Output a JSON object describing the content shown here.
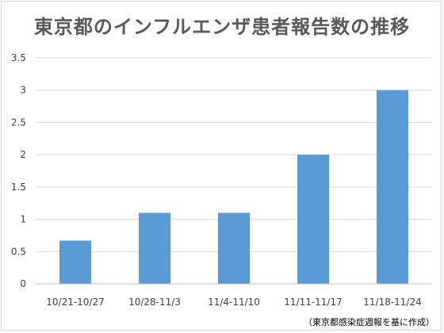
{
  "title": "東京都のインフルエンザ患者報告数の推移",
  "source_note": "（東京都感染症週報を基に作成）",
  "colors": {
    "bar": "#5b9bd5",
    "grid": "#d9d9d9",
    "axis": "#bfbfbf"
  },
  "chart_data": {
    "type": "bar",
    "title": "東京都のインフルエンザ患者報告数の推移",
    "categories": [
      "10/21-10/27",
      "10/28-11/3",
      "11/4-11/10",
      "11/11-11/17",
      "11/18-11/24"
    ],
    "values": [
      0.67,
      1.1,
      1.1,
      2.0,
      3.0
    ],
    "ylim": [
      0,
      3.5
    ],
    "yticks": [
      "0",
      "0.5",
      "1",
      "1.5",
      "2",
      "2.5",
      "3",
      "3.5"
    ],
    "grid": true,
    "legend": "none"
  }
}
